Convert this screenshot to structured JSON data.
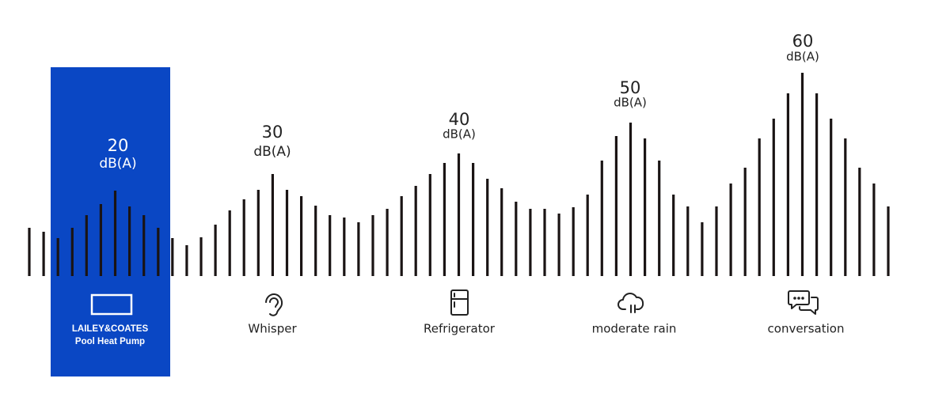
{
  "items": [
    {
      "level": 20,
      "unit": "dB(A)",
      "name": [
        "LAILEY&COATES",
        "Pool Heat Pump"
      ]
    },
    {
      "level": 30,
      "unit": "dB(A)",
      "name": "Whisper"
    },
    {
      "level": 40,
      "unit": "dB(A)",
      "name": "Refrigerator"
    },
    {
      "level": 50,
      "unit": "dB(A)",
      "name": "moderate rain"
    },
    {
      "level": 60,
      "unit": "dB(A)",
      "name": "conversation"
    }
  ]
}
